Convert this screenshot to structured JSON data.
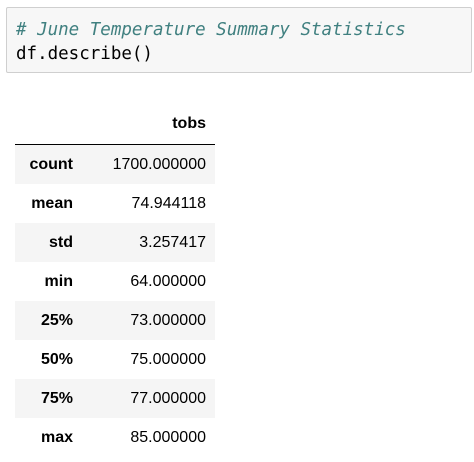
{
  "code_cell": {
    "comment": "# June Temperature Summary Statistics",
    "code": "df.describe()"
  },
  "output_table": {
    "column": "tobs",
    "rows": [
      {
        "label": "count",
        "value": "1700.000000"
      },
      {
        "label": "mean",
        "value": "74.944118"
      },
      {
        "label": "std",
        "value": "3.257417"
      },
      {
        "label": "min",
        "value": "64.000000"
      },
      {
        "label": "25%",
        "value": "73.000000"
      },
      {
        "label": "50%",
        "value": "75.000000"
      },
      {
        "label": "75%",
        "value": "77.000000"
      },
      {
        "label": "max",
        "value": "85.000000"
      }
    ]
  }
}
